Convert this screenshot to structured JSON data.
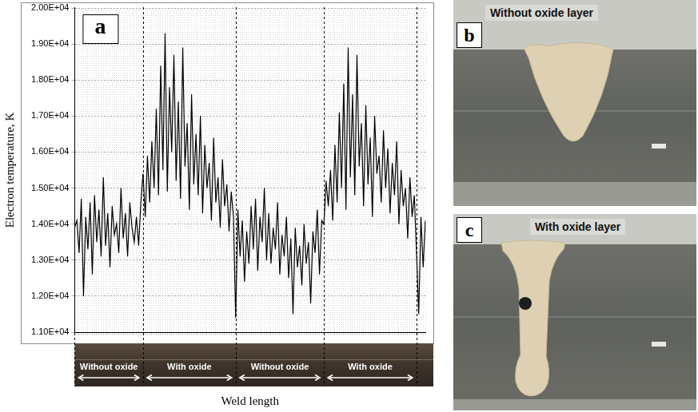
{
  "chart_data": {
    "type": "line",
    "panel_label": "a",
    "y_label": "Electron temperature, K",
    "x_label": "Weld length",
    "categories": [
      null,
      null,
      null,
      null,
      null,
      null,
      null,
      null,
      null,
      null,
      null,
      null,
      null,
      null,
      null,
      null,
      null,
      null,
      null,
      null,
      null,
      null,
      null,
      null,
      null,
      null,
      null,
      null,
      null,
      null,
      null,
      null,
      null,
      null,
      null,
      null,
      null,
      null,
      null,
      null,
      null,
      null,
      null,
      null,
      null,
      null,
      null,
      null,
      null,
      null,
      null,
      null,
      null,
      null,
      null,
      null,
      null,
      null,
      null,
      null,
      null,
      null,
      null,
      null,
      null,
      null,
      null,
      null,
      null,
      null,
      null,
      null,
      null,
      null,
      null,
      null,
      null,
      null,
      null,
      null,
      null,
      null,
      null,
      null,
      null,
      null,
      null,
      null,
      null,
      null,
      null,
      null,
      null,
      null,
      null,
      null,
      null,
      null,
      null,
      null,
      null,
      null,
      null,
      null,
      null,
      null,
      null,
      null,
      null,
      null,
      null,
      null,
      null,
      null,
      null,
      null,
      null,
      null,
      null,
      null,
      null,
      null,
      null,
      null,
      null,
      null,
      null,
      null,
      null,
      null,
      null,
      null,
      null,
      null,
      null,
      null,
      null,
      null,
      null,
      null,
      null,
      null,
      null,
      null,
      null,
      null,
      null,
      null,
      null,
      null,
      null,
      null,
      null,
      null,
      null,
      null,
      null,
      null,
      null,
      null
    ],
    "values": [
      13900,
      14100,
      13200,
      14700,
      12000,
      14200,
      13300,
      14600,
      12600,
      14800,
      13500,
      14400,
      13100,
      15300,
      13400,
      14300,
      12800,
      14500,
      13700,
      14000,
      13200,
      15000,
      13600,
      14300,
      13100,
      14600,
      13900,
      13500,
      14200,
      13400,
      14600,
      15400,
      14200,
      15900,
      14600,
      16300,
      15000,
      17200,
      14800,
      18400,
      15500,
      19300,
      14900,
      17800,
      16000,
      18700,
      15200,
      17400,
      14700,
      18900,
      15600,
      16800,
      14400,
      17600,
      15100,
      16500,
      14800,
      17000,
      14300,
      16200,
      15000,
      15700,
      14100,
      16400,
      14600,
      15300,
      13900,
      15800,
      14500,
      15100,
      13800,
      14900,
      14200,
      11400,
      14400,
      13100,
      14100,
      12400,
      13800,
      12900,
      14500,
      13300,
      14700,
      12700,
      14200,
      13500,
      15000,
      13000,
      14300,
      12900,
      13900,
      13300,
      14600,
      12600,
      13700,
      13100,
      14200,
      12500,
      13600,
      11500,
      13900,
      12800,
      13400,
      12300,
      14000,
      12900,
      13500,
      11800,
      13800,
      13200,
      14400,
      12600,
      14100,
      14000,
      15200,
      14500,
      15500,
      14100,
      16200,
      14600,
      17100,
      15000,
      17900,
      14400,
      18900,
      15300,
      17600,
      14800,
      18700,
      15600,
      16800,
      14500,
      17300,
      15100,
      16400,
      14200,
      17000,
      15400,
      15900,
      14600,
      16600,
      15000,
      16100,
      14300,
      15700,
      14800,
      16300,
      14000,
      15500,
      14500,
      15000,
      13600,
      15300,
      14200,
      14800,
      13200,
      11500,
      14200,
      12800,
      14100
    ],
    "color": "#000000",
    "ylim": [
      11000,
      20000
    ],
    "yticks": [
      {
        "value": 11000,
        "label": "1.10E+04"
      },
      {
        "value": 12000,
        "label": "1.20E+04"
      },
      {
        "value": 13000,
        "label": "1.30E+04"
      },
      {
        "value": 14000,
        "label": "1.40E+04"
      },
      {
        "value": 15000,
        "label": "1.50E+04"
      },
      {
        "value": 16000,
        "label": "1.60E+04"
      },
      {
        "value": 17000,
        "label": "1.70E+04"
      },
      {
        "value": 18000,
        "label": "1.80E+04"
      },
      {
        "value": 19000,
        "label": "1.90E+04"
      },
      {
        "value": 20000,
        "label": "2.00E+04"
      }
    ],
    "grid": true,
    "tick_labels": "y",
    "sections": [
      {
        "label": "Without oxide",
        "start": 0,
        "end": 31
      },
      {
        "label": "With oxide",
        "start": 31,
        "end": 73
      },
      {
        "label": "Without oxide",
        "start": 73,
        "end": 113
      },
      {
        "label": "With oxide",
        "start": 113,
        "end": 155
      }
    ]
  },
  "panels": [
    {
      "letter": "b",
      "caption": "Without oxide layer"
    },
    {
      "letter": "c",
      "caption": "With oxide layer"
    }
  ]
}
